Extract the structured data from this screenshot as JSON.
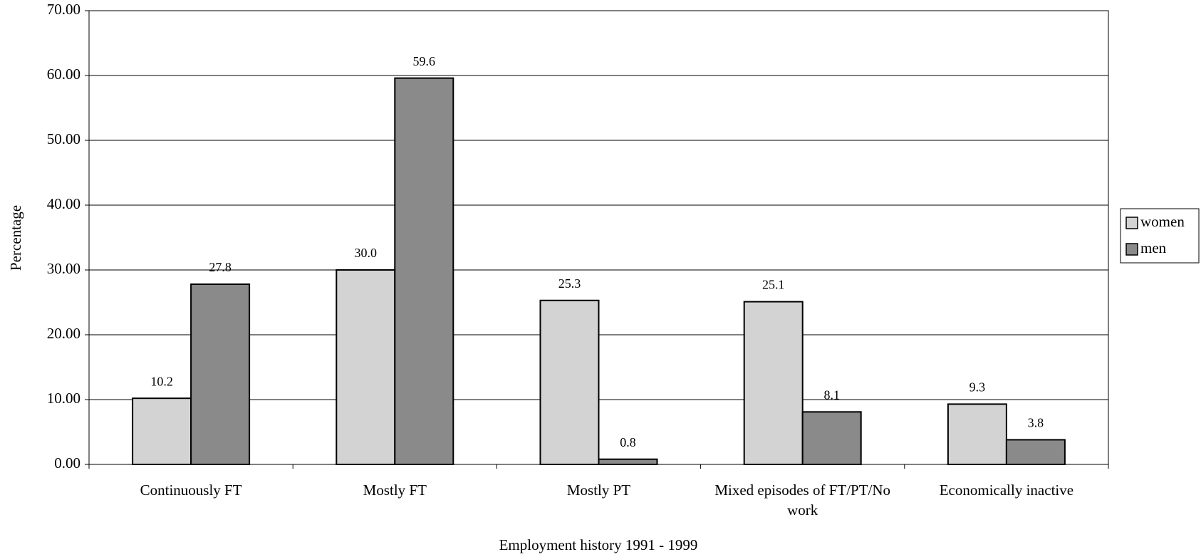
{
  "chart_data": {
    "type": "bar",
    "categories": [
      "Continuously FT",
      "Mostly FT",
      "Mostly PT",
      "Mixed episodes of FT/PT/No work",
      "Economically inactive"
    ],
    "series": [
      {
        "name": "women",
        "color": "#d3d3d3",
        "values": [
          10.2,
          30.0,
          25.3,
          25.1,
          9.3
        ],
        "value_labels": [
          "10.2",
          "30.0",
          "25.3",
          "25.1",
          "9.3"
        ]
      },
      {
        "name": "men",
        "color": "#8a8a8a",
        "values": [
          27.8,
          59.6,
          0.8,
          8.1,
          3.8
        ],
        "value_labels": [
          "27.8",
          "59.6",
          "0.8",
          "8.1",
          "3.8"
        ]
      }
    ],
    "x_label": "Employment history 1991 - 1999",
    "y_label": "Percentage",
    "ylim": [
      0,
      70
    ],
    "yticks": [
      {
        "value": 0,
        "label": "0.00"
      },
      {
        "value": 10,
        "label": "10.00"
      },
      {
        "value": 20,
        "label": "20.00"
      },
      {
        "value": 30,
        "label": "30.00"
      },
      {
        "value": 40,
        "label": "40.00"
      },
      {
        "value": 50,
        "label": "50.00"
      },
      {
        "value": 60,
        "label": "60.00"
      },
      {
        "value": 70,
        "label": "70.00"
      }
    ],
    "grid": true,
    "legend": "right"
  }
}
